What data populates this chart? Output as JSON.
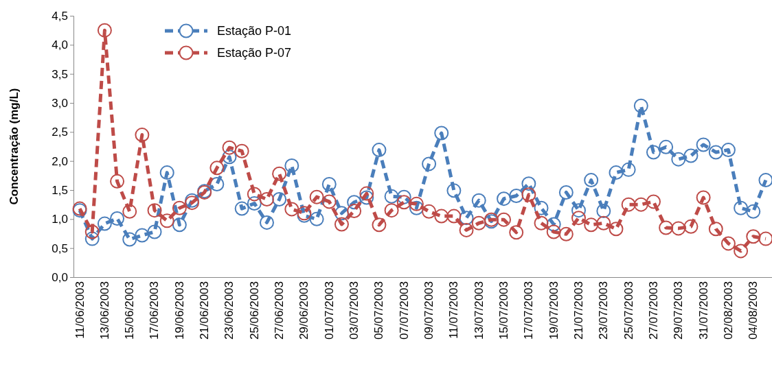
{
  "chart_data": {
    "type": "line",
    "ylabel": "Concentração (mg/L)",
    "categories": [
      "11/06/2003",
      null,
      "13/06/2003",
      null,
      "15/06/2003",
      null,
      "17/06/2003",
      null,
      "19/06/2003",
      null,
      "21/06/2003",
      null,
      "23/06/2003",
      null,
      "25/06/2003",
      null,
      "27/06/2003",
      null,
      "29/06/2003",
      null,
      "01/07/2003",
      null,
      "03/07/2003",
      null,
      "05/07/2003",
      null,
      "07/07/2003",
      null,
      "09/07/2003",
      null,
      "11/07/2003",
      null,
      "13/07/2003",
      null,
      "15/07/2003",
      null,
      "17/07/2003",
      null,
      "19/07/2003",
      null,
      "21/07/2003",
      null,
      "23/07/2003",
      null,
      "25/07/2003",
      null,
      "27/07/2003",
      null,
      "29/07/2003",
      null,
      "31/07/2003",
      null,
      "02/08/2003",
      null,
      "04/08/2003",
      null
    ],
    "series": [
      {
        "name": "Estação P-01",
        "color": "#4a7ebb",
        "values": [
          1.15,
          0.66,
          0.92,
          1.01,
          0.65,
          0.72,
          0.78,
          1.8,
          0.9,
          1.32,
          1.48,
          1.6,
          2.07,
          1.18,
          1.27,
          0.94,
          1.34,
          1.92,
          1.06,
          1.0,
          1.6,
          1.1,
          1.29,
          1.37,
          2.19,
          1.39,
          1.38,
          1.19,
          1.95,
          2.48,
          1.49,
          1.02,
          1.32,
          0.96,
          1.35,
          1.4,
          1.61,
          1.19,
          0.91,
          1.46,
          1.15,
          1.67,
          1.14,
          1.8,
          1.85,
          2.95,
          2.15,
          2.24,
          2.03,
          2.09,
          2.28,
          2.15,
          2.19,
          1.19,
          1.13,
          1.67
        ]
      },
      {
        "name": "Estação P-07",
        "color": "#be4b48",
        "values": [
          1.18,
          0.78,
          4.25,
          1.65,
          1.13,
          2.45,
          1.15,
          0.97,
          1.19,
          1.28,
          1.46,
          1.88,
          2.23,
          2.17,
          1.43,
          1.34,
          1.78,
          1.17,
          1.1,
          1.38,
          1.3,
          0.91,
          1.14,
          1.44,
          0.9,
          1.15,
          1.29,
          1.26,
          1.13,
          1.05,
          1.05,
          0.81,
          0.93,
          0.99,
          0.99,
          0.77,
          1.42,
          0.93,
          0.78,
          0.74,
          1.02,
          0.9,
          0.93,
          0.83,
          1.25,
          1.25,
          1.3,
          0.85,
          0.84,
          0.87,
          1.37,
          0.83,
          0.58,
          0.45,
          0.7,
          0.66
        ]
      }
    ],
    "ylim": [
      0,
      4.5
    ],
    "yticks": [
      {
        "value": 0,
        "label": "0,0"
      },
      {
        "value": 0.5,
        "label": "0,5"
      },
      {
        "value": 1,
        "label": "1,0"
      },
      {
        "value": 1.5,
        "label": "1,5"
      },
      {
        "value": 2,
        "label": "2,0"
      },
      {
        "value": 2.5,
        "label": "2,5"
      },
      {
        "value": 3,
        "label": "3,0"
      },
      {
        "value": 3.5,
        "label": "3,5"
      },
      {
        "value": 4,
        "label": "4,0"
      },
      {
        "value": 4.5,
        "label": "4,5"
      }
    ],
    "grid": false,
    "legend": "top left",
    "marker": "circle",
    "line_style": "dashed"
  }
}
